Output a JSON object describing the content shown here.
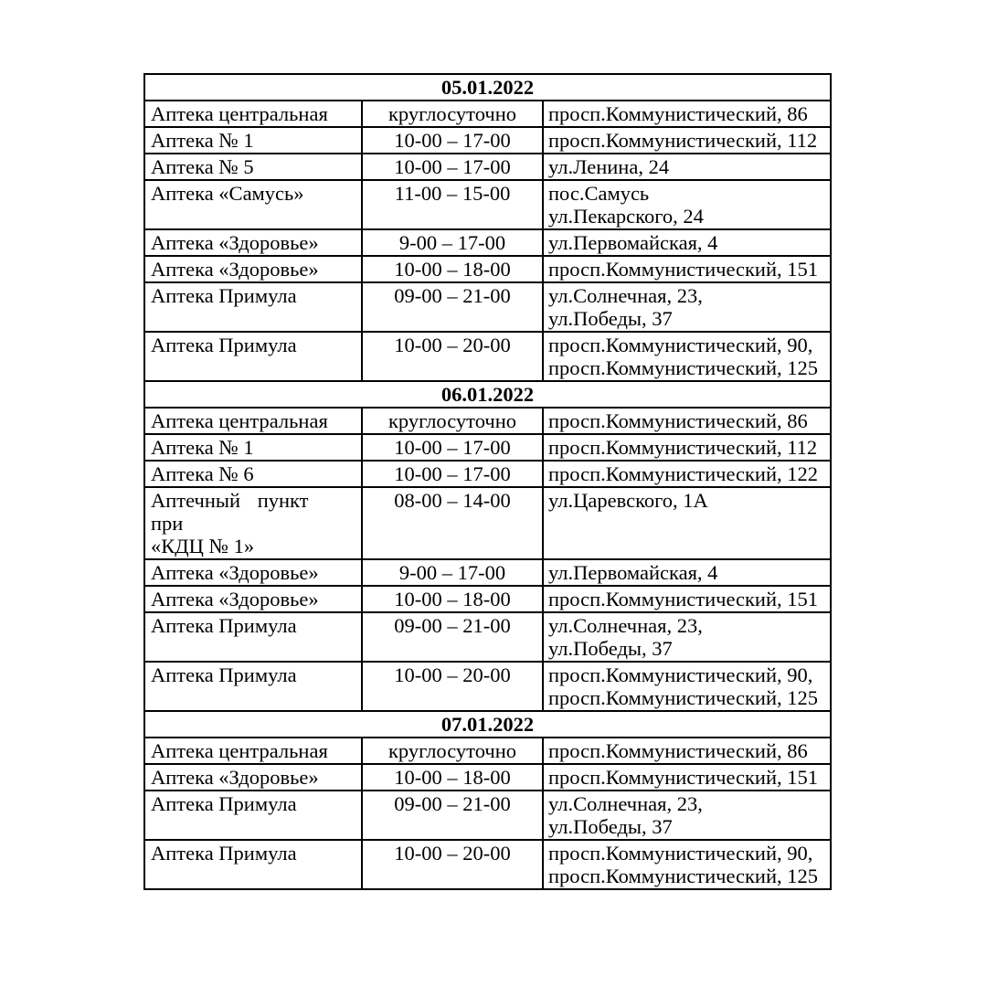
{
  "page": {
    "background": "#ffffff",
    "text_color": "#000000",
    "border_color": "#000000"
  },
  "table": {
    "sections": [
      {
        "date": "05.01.2022",
        "rows": [
          {
            "name": "Аптека центральная",
            "hours": "круглосуточно",
            "address": "просп.Коммунистический, 86"
          },
          {
            "name": "Аптека № 1",
            "hours": "10-00 – 17-00",
            "address": "просп.Коммунистический, 112"
          },
          {
            "name": "Аптека № 5",
            "hours": "10-00 – 17-00",
            "address": "ул.Ленина, 24"
          },
          {
            "name": "Аптека «Самусь»",
            "hours": "11-00 – 15-00",
            "address": "пос.Самусь\nул.Пекарского, 24"
          },
          {
            "name": "Аптека «Здоровье»",
            "hours": "9-00 – 17-00",
            "address": "ул.Первомайская, 4"
          },
          {
            "name": "Аптека «Здоровье»",
            "hours": "10-00 – 18-00",
            "address": "просп.Коммунистический, 151"
          },
          {
            "name": "Аптека Примула",
            "hours": "09-00 – 21-00",
            "address": "ул.Солнечная, 23,\nул.Победы, 37"
          },
          {
            "name": "Аптека Примула",
            "hours": "10-00 – 20-00",
            "address": "просп.Коммунистический, 90,\nпросп.Коммунистический, 125"
          }
        ]
      },
      {
        "date": "06.01.2022",
        "rows": [
          {
            "name": "Аптека центральная",
            "hours": "круглосуточно",
            "address": "просп.Коммунистический, 86"
          },
          {
            "name": "Аптека № 1",
            "hours": "10-00 – 17-00",
            "address": "просп.Коммунистический, 112"
          },
          {
            "name": "Аптека № 6",
            "hours": "10-00 – 17-00",
            "address": "просп.Коммунистический, 122"
          },
          {
            "name": "Аптечный пункт при\n«КДЦ № 1»",
            "hours": "08-00 – 14-00",
            "address": "ул.Царевского, 1А",
            "name_justified": true
          },
          {
            "name": "Аптека «Здоровье»",
            "hours": "9-00 – 17-00",
            "address": "ул.Первомайская, 4"
          },
          {
            "name": "Аптека «Здоровье»",
            "hours": "10-00 – 18-00",
            "address": "просп.Коммунистический, 151"
          },
          {
            "name": "Аптека Примула",
            "hours": "09-00 – 21-00",
            "address": "ул.Солнечная, 23,\nул.Победы, 37"
          },
          {
            "name": "Аптека Примула",
            "hours": "10-00 – 20-00",
            "address": "просп.Коммунистический, 90,\nпросп.Коммунистический, 125"
          }
        ]
      },
      {
        "date": "07.01.2022",
        "rows": [
          {
            "name": "Аптека центральная",
            "hours": "круглосуточно",
            "address": "просп.Коммунистический, 86"
          },
          {
            "name": "Аптека «Здоровье»",
            "hours": "10-00 – 18-00",
            "address": "просп.Коммунистический, 151"
          },
          {
            "name": "Аптека Примула",
            "hours": "09-00 – 21-00",
            "address": "ул.Солнечная, 23,\nул.Победы, 37"
          },
          {
            "name": "Аптека Примула",
            "hours": "10-00 – 20-00",
            "address": "просп.Коммунистический, 90,\nпросп.Коммунистический, 125"
          }
        ]
      }
    ]
  }
}
